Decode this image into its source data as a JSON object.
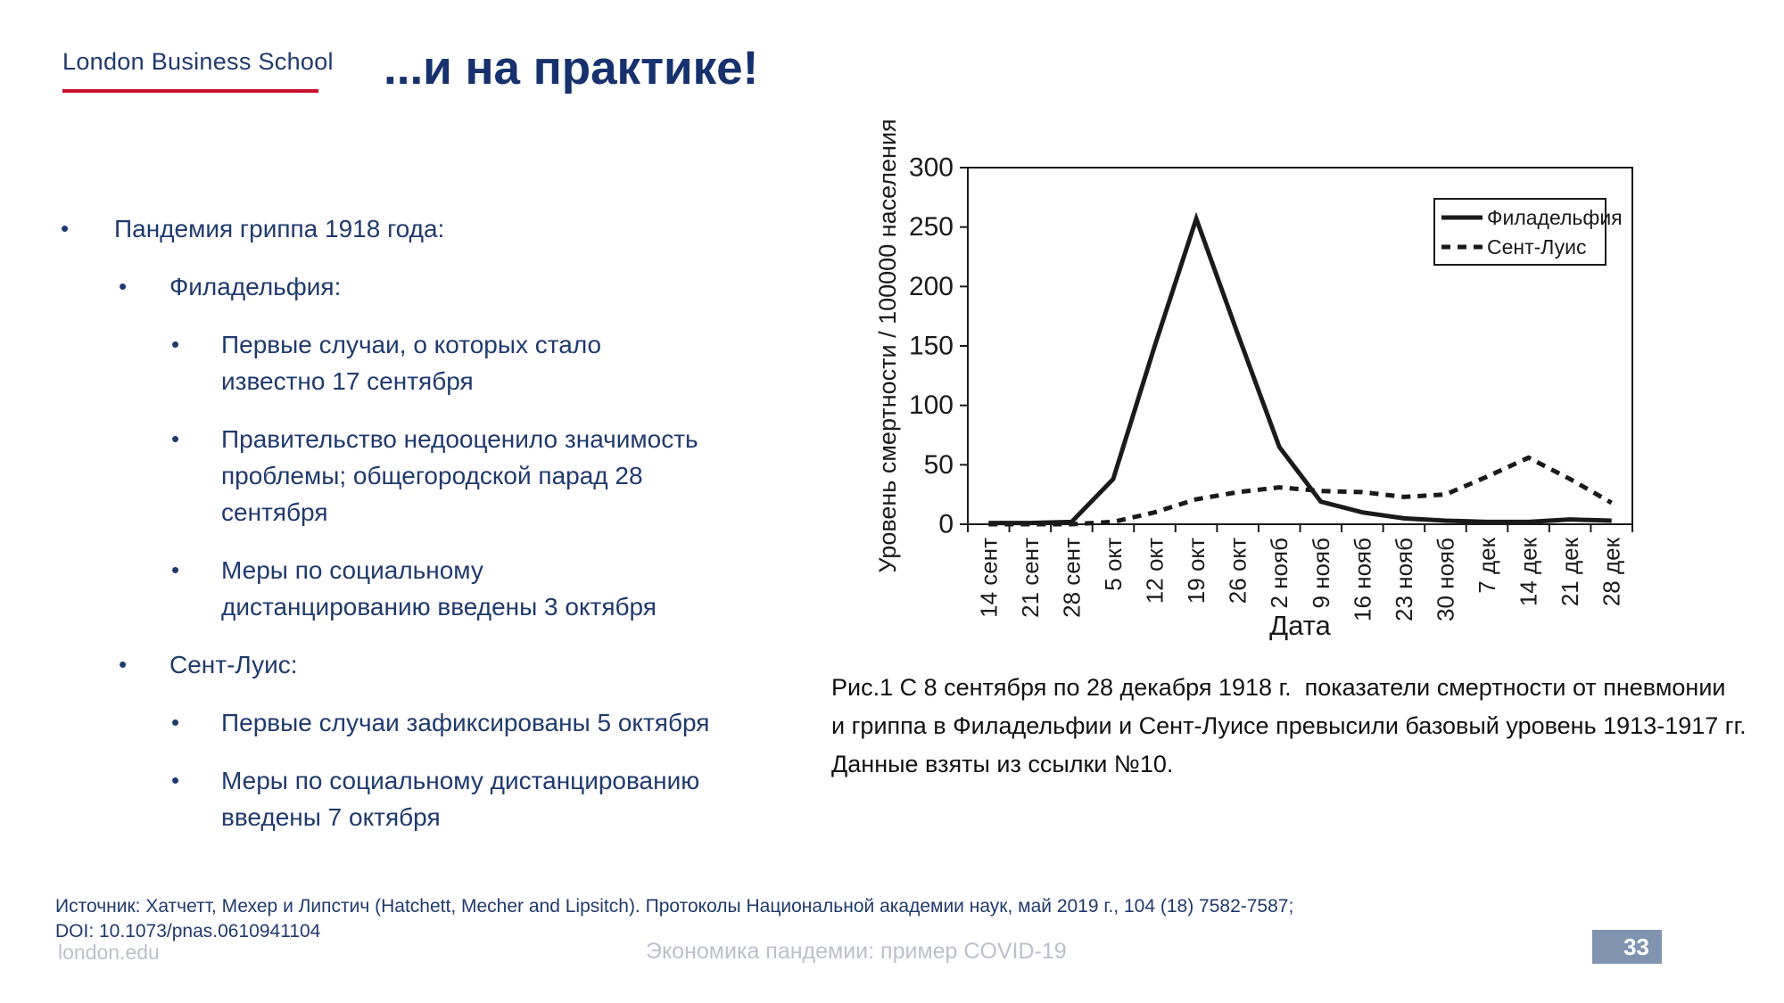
{
  "logo": {
    "text": "London Business School"
  },
  "title": "...и на практике!",
  "bullets": [
    {
      "level": 1,
      "text": "Пандемия гриппа 1918 года:"
    },
    {
      "level": 2,
      "text": "Филадельфия:"
    },
    {
      "level": 3,
      "text": "Первые случаи, о которых стало\nизвестно 17 сентября"
    },
    {
      "level": 3,
      "text": "Правительство недооценило значимость\nпроблемы; общегородской парад 28\nсентября"
    },
    {
      "level": 3,
      "text": "Меры по социальному\nдистанцированию введены 3 октября"
    },
    {
      "level": 2,
      "text": "Сент-Луис:"
    },
    {
      "level": 3,
      "text": "Первые случаи зафиксированы 5 октября"
    },
    {
      "level": 3,
      "text": "Меры по социальному дистанцированию\nвведены 7 октября"
    }
  ],
  "figure_caption": "Рис.1 С 8 сентября по 28 декабря 1918 г.  показатели смертности от пневмонии\nи гриппа в Филадельфии и Сент-Луисе превысили базовый уровень 1913-1917 гг.\nДанные взяты из ссылки №10.",
  "source": "Источник: Хатчетт, Мехер и Липстич (Hatchett, Mecher and Lipsitch). Протоколы Национальной академии наук, май 2019 г., 104 (18) 7582-7587;\nDOI: 10.1073/pnas.0610941104",
  "footer": {
    "left": "london.edu",
    "center": "Экономика пандемии: пример COVID-19",
    "page_number": "33"
  },
  "colors": {
    "navy": "#1F3A6E",
    "title_navy": "#16316D",
    "red": "#C8102E",
    "footer_gray": "#BCC0CC",
    "badge_blue": "#8093AF",
    "chart_ink": "#1A1A1A"
  },
  "chart_data": {
    "type": "line",
    "title": "",
    "xlabel": "Дата",
    "ylabel": "Уровень смертности / 100000 населения",
    "ylim": [
      0,
      300
    ],
    "yticks": [
      0,
      50,
      100,
      150,
      200,
      250,
      300
    ],
    "grid": false,
    "legend_position": "top-right",
    "categories": [
      "14 сент",
      "21 сент",
      "28 сент",
      "5 окт",
      "12 окт",
      "19 окт",
      "26 окт",
      "2 нояб",
      "9 нояб",
      "16 нояб",
      "23 нояб",
      "30 нояб",
      "7 дек",
      "14 дек",
      "21 дек",
      "28 дек"
    ],
    "series": [
      {
        "name": "Филадельфия",
        "style": "solid",
        "values": [
          1,
          1,
          2,
          38,
          150,
          257,
          160,
          65,
          19,
          10,
          5,
          3,
          2,
          2,
          4,
          3
        ]
      },
      {
        "name": "Сент-Луис",
        "style": "dashed",
        "values": [
          0,
          0,
          0,
          2,
          10,
          21,
          27,
          31,
          28,
          27,
          23,
          25,
          40,
          56,
          38,
          18
        ]
      }
    ]
  }
}
